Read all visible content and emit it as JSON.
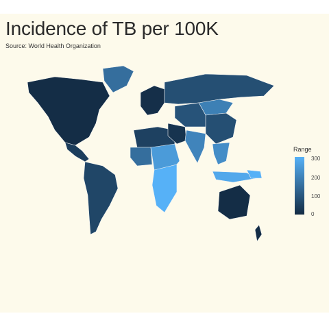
{
  "title": "Incidence of TB per 100K",
  "subtitle": "Source: World Health Organization",
  "legend": {
    "title": "Range",
    "ticks": [
      "300",
      "200",
      "100",
      "0"
    ],
    "low_color": "#132b43",
    "high_color": "#56b1f7"
  },
  "chart_data": {
    "type": "choropleth",
    "title": "Incidence of TB per 100K",
    "legend_title": "Range",
    "scale": {
      "min": 0,
      "max": 300,
      "ticks": [
        0,
        100,
        200,
        300
      ]
    },
    "regions": [
      {
        "name": "North America",
        "value": 5
      },
      {
        "name": "Greenland",
        "value": 150
      },
      {
        "name": "Central America",
        "value": 40
      },
      {
        "name": "South America",
        "value": 60
      },
      {
        "name": "Western Europe",
        "value": 10
      },
      {
        "name": "Russia",
        "value": 80
      },
      {
        "name": "Mongolia",
        "value": 190
      },
      {
        "name": "China",
        "value": 80
      },
      {
        "name": "Central Asia",
        "value": 90
      },
      {
        "name": "North Africa",
        "value": 50
      },
      {
        "name": "Middle East",
        "value": 20
      },
      {
        "name": "West Africa",
        "value": 150
      },
      {
        "name": "Central Africa",
        "value": 250
      },
      {
        "name": "Southern Africa",
        "value": 300
      },
      {
        "name": "India",
        "value": 200
      },
      {
        "name": "Southeast Asia",
        "value": 220
      },
      {
        "name": "Indonesia",
        "value": 280
      },
      {
        "name": "Australia",
        "value": 5
      },
      {
        "name": "New Zealand",
        "value": 5
      },
      {
        "name": "Papua New Guinea",
        "value": 300
      }
    ]
  }
}
